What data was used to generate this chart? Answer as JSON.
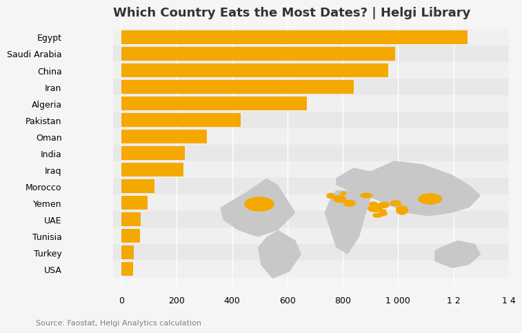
{
  "title": "Which Country Eats the Most Dates? | Helgi Library",
  "countries": [
    "Egypt",
    "Saudi Arabia",
    "China",
    "Iran",
    "Algeria",
    "Pakistan",
    "Oman",
    "India",
    "Iraq",
    "Morocco",
    "Yemen",
    "UAE",
    "Tunisia",
    "Turkey",
    "USA"
  ],
  "values": [
    1250,
    990,
    965,
    840,
    670,
    430,
    310,
    230,
    225,
    120,
    95,
    70,
    68,
    45,
    42
  ],
  "bar_color": "#F5A800",
  "bg_color_odd": "#F0F0F0",
  "bg_color_even": "#E8E8E8",
  "source_text": "Source: Faostat, Helgi Analytics calculation",
  "xlim": [
    -30,
    1400
  ],
  "xticks": [
    0,
    200,
    400,
    600,
    800,
    1000,
    1200,
    1400
  ],
  "bar_height": 0.85,
  "title_fontsize": 13,
  "axis_fontsize": 9,
  "label_fontsize": 9,
  "source_fontsize": 8
}
